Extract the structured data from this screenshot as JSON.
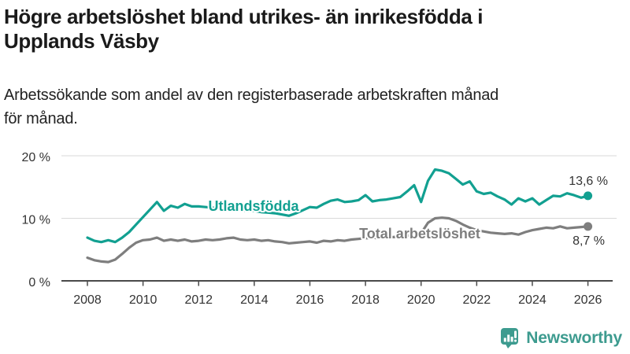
{
  "header": {
    "title": "Högre arbetslöshet bland utrikes- än inrikesfödda i Upplands Väsby",
    "title_lines": [
      "Högre arbetslöshet bland utrikes- än inrikesfödda i",
      "Upplands Väsby"
    ],
    "subtitle": "Arbetssökande som andel av den registerbaserade arbetskraften månad för månad.",
    "subtitle_lines": [
      "Arbetssökande som andel av den registerbaserade arbetskraften månad",
      "för månad."
    ]
  },
  "colors": {
    "accent_teal": "#12a091",
    "brand_teal": "#3d9b8f",
    "line_gray": "#7e7e7e",
    "axis_text": "#333333",
    "gridline": "#d9d9d9",
    "axis_line": "#4a4a4a"
  },
  "chart_data": {
    "type": "line",
    "title": "Högre arbetslöshet bland utrikes- än inrikesfödda i Upplands Väsby",
    "subtitle": "Arbetssökande som andel av den registerbaserade arbetskraften månad för månad.",
    "xlabel": "",
    "ylabel": "",
    "grid": true,
    "x_axis": {
      "ticks": [
        2008,
        2010,
        2012,
        2014,
        2016,
        2018,
        2020,
        2022,
        2024,
        2026
      ]
    },
    "y_axis": {
      "ylim": [
        0,
        21
      ],
      "ticks": [
        {
          "value": 0,
          "label": "0 %"
        },
        {
          "value": 10,
          "label": "10 %"
        },
        {
          "value": 20,
          "label": "20 %"
        }
      ]
    },
    "series": [
      {
        "id": "utlandsfodda",
        "name": "Utlandsfödda",
        "color": "#12a091",
        "end_label": "13,6 %",
        "end_value": 13.6,
        "x_start": 2008,
        "x_step": 0.25,
        "values": [
          6.9,
          6.4,
          6.2,
          6.5,
          6.2,
          6.9,
          7.8,
          9.0,
          10.2,
          11.4,
          12.6,
          11.2,
          12.0,
          11.7,
          12.3,
          11.9,
          11.9,
          11.8,
          11.7,
          11.6,
          11.6,
          11.4,
          11.3,
          11.2,
          11.2,
          11.0,
          10.9,
          10.8,
          10.6,
          10.4,
          10.8,
          11.3,
          11.8,
          11.7,
          12.3,
          12.8,
          13.0,
          12.6,
          12.7,
          12.9,
          13.7,
          12.7,
          12.9,
          13.0,
          13.2,
          13.4,
          14.3,
          15.3,
          12.6,
          16.0,
          17.8,
          17.6,
          17.2,
          16.3,
          15.4,
          15.9,
          14.3,
          13.9,
          14.1,
          13.5,
          13.0,
          12.2,
          13.2,
          12.7,
          13.2,
          12.2,
          12.9,
          13.6,
          13.5,
          14.0,
          13.7,
          13.3,
          13.6
        ]
      },
      {
        "id": "total",
        "name": "Total arbetslöshet",
        "color": "#7e7e7e",
        "end_label": "8,7 %",
        "end_value": 8.7,
        "x_start": 2008,
        "x_step": 0.25,
        "values": [
          3.7,
          3.3,
          3.1,
          3.0,
          3.4,
          4.3,
          5.3,
          6.1,
          6.5,
          6.6,
          6.9,
          6.4,
          6.6,
          6.4,
          6.6,
          6.3,
          6.4,
          6.6,
          6.5,
          6.6,
          6.8,
          6.9,
          6.6,
          6.5,
          6.6,
          6.4,
          6.5,
          6.3,
          6.2,
          6.0,
          6.1,
          6.2,
          6.3,
          6.1,
          6.4,
          6.3,
          6.5,
          6.4,
          6.6,
          6.7,
          6.8,
          6.9,
          6.8,
          7.0,
          7.0,
          7.1,
          7.2,
          7.4,
          7.6,
          9.3,
          10.0,
          10.1,
          10.0,
          9.6,
          9.0,
          8.5,
          8.1,
          7.9,
          7.7,
          7.6,
          7.5,
          7.6,
          7.4,
          7.8,
          8.1,
          8.3,
          8.5,
          8.4,
          8.7,
          8.4,
          8.5,
          8.6,
          8.7
        ]
      }
    ],
    "legend_position": "inline-labels"
  },
  "footer": {
    "brand": "Newsworthy"
  }
}
